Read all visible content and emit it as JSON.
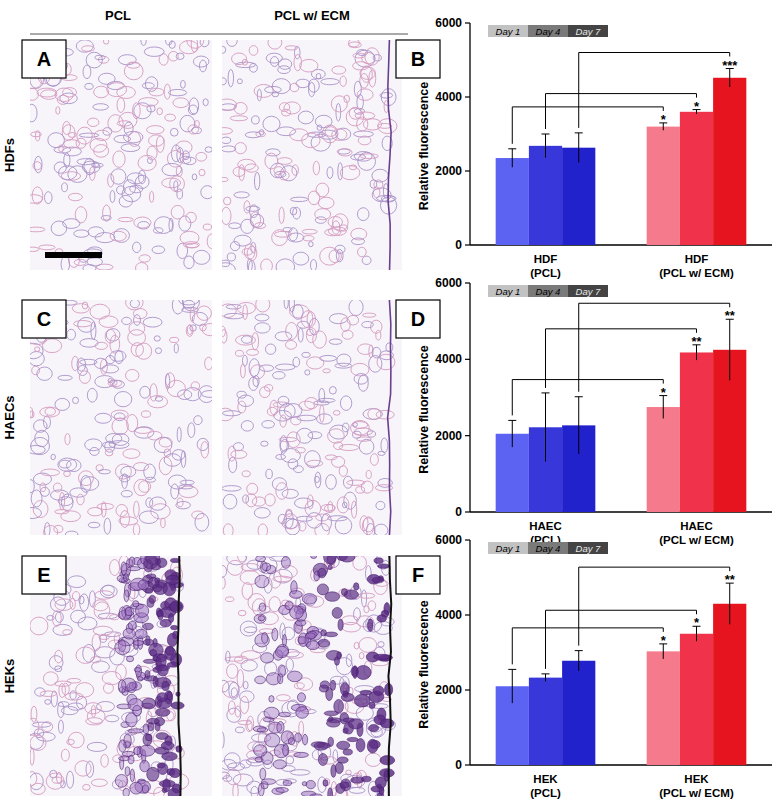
{
  "figure": {
    "column_headers": [
      "PCL",
      "PCL w/ ECM"
    ],
    "row_labels": [
      "HDFs",
      "HAECs",
      "HEKs"
    ],
    "image_panels": [
      "A",
      "C",
      "E"
    ]
  },
  "chart_data": [
    {
      "panel": "B",
      "type": "bar",
      "y_label": "Relative fluorescence",
      "categories": [
        "HDF\n(PCL)",
        "HDF\n(PCL w/ ECM)"
      ],
      "ylim": [
        0,
        6000
      ],
      "yticks": [
        0,
        2000,
        4000,
        6000
      ],
      "legend": "top left",
      "series": [
        {
          "name": "Day 1",
          "color": "#c2c2c2",
          "colors": [
            "#5c63f2",
            "#f47a8c"
          ],
          "values": [
            2350,
            3200
          ],
          "errors": [
            250,
            100
          ],
          "annotations": [
            null,
            "*"
          ]
        },
        {
          "name": "Day 4",
          "color": "#7a7a7a",
          "colors": [
            "#3838da",
            "#f0334b"
          ],
          "values": [
            2680,
            3600
          ],
          "errors": [
            320,
            60
          ],
          "annotations": [
            null,
            "*"
          ]
        },
        {
          "name": "Day 7",
          "color": "#444444",
          "colors": [
            "#2222cc",
            "#e6141f"
          ],
          "values": [
            2630,
            4520
          ],
          "errors": [
            400,
            250
          ],
          "annotations": [
            null,
            "***"
          ]
        }
      ]
    },
    {
      "panel": "D",
      "type": "bar",
      "y_label": "Relative fluorescence",
      "categories": [
        "HAEC\n(PCL)",
        "HAEC\n(PCL w/ ECM)"
      ],
      "ylim": [
        0,
        6000
      ],
      "yticks": [
        0,
        2000,
        4000,
        6000
      ],
      "legend": "top left",
      "series": [
        {
          "name": "Day 1",
          "color": "#c2c2c2",
          "colors": [
            "#5c63f2",
            "#f47a8c"
          ],
          "values": [
            2050,
            2750
          ],
          "errors": [
            350,
            300
          ],
          "annotations": [
            null,
            "*"
          ]
        },
        {
          "name": "Day 4",
          "color": "#7a7a7a",
          "colors": [
            "#3838da",
            "#f0334b"
          ],
          "values": [
            2220,
            4180
          ],
          "errors": [
            900,
            200
          ],
          "annotations": [
            null,
            "**"
          ]
        },
        {
          "name": "Day 7",
          "color": "#444444",
          "colors": [
            "#2222cc",
            "#e6141f"
          ],
          "values": [
            2270,
            4250
          ],
          "errors": [
            750,
            800
          ],
          "annotations": [
            null,
            "**"
          ]
        }
      ]
    },
    {
      "panel": "F",
      "type": "bar",
      "y_label": "Relative fluorescence",
      "categories": [
        "HEK\n(PCL)",
        "HEK\n(PCL w/ ECM)"
      ],
      "ylim": [
        0,
        6000
      ],
      "yticks": [
        0,
        2000,
        4000,
        6000
      ],
      "legend": "top left",
      "series": [
        {
          "name": "Day 1",
          "color": "#c2c2c2",
          "colors": [
            "#5c63f2",
            "#f47a8c"
          ],
          "values": [
            2100,
            3030
          ],
          "errors": [
            450,
            200
          ],
          "annotations": [
            null,
            "*"
          ]
        },
        {
          "name": "Day 4",
          "color": "#7a7a7a",
          "colors": [
            "#3838da",
            "#f0334b"
          ],
          "values": [
            2330,
            3500
          ],
          "errors": [
            100,
            200
          ],
          "annotations": [
            null,
            "*"
          ]
        },
        {
          "name": "Day 7",
          "color": "#444444",
          "colors": [
            "#2222cc",
            "#e6141f"
          ],
          "values": [
            2780,
            4300
          ],
          "errors": [
            270,
            550
          ],
          "annotations": [
            null,
            "**"
          ]
        }
      ]
    }
  ]
}
